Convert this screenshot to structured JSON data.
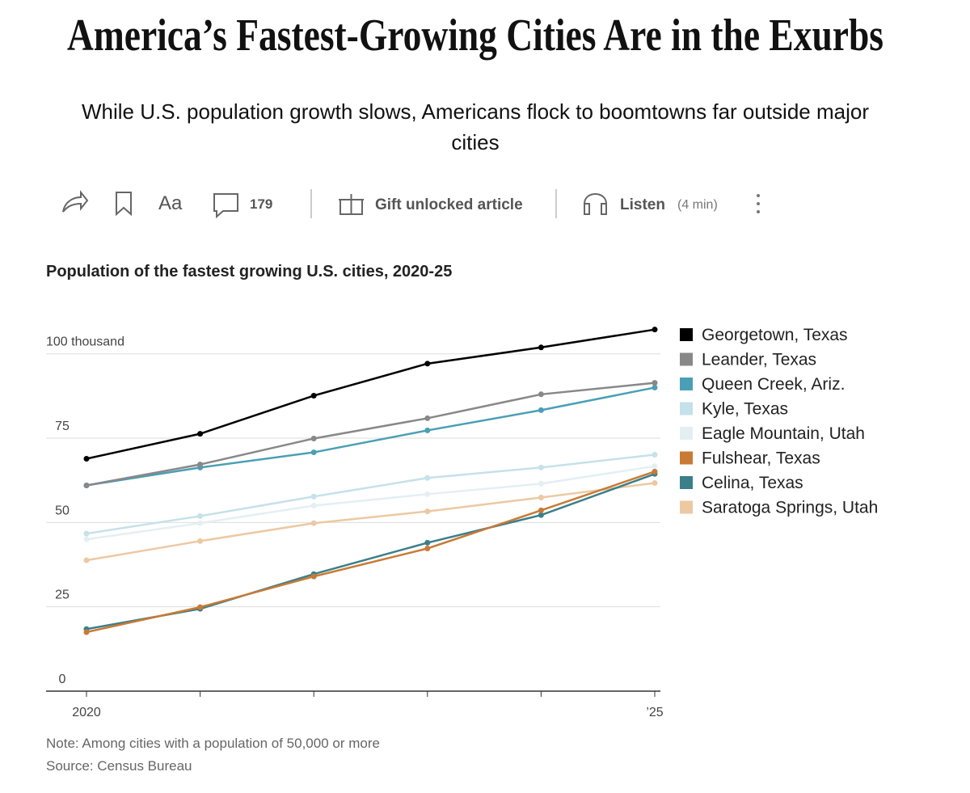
{
  "header": {
    "title": "America’s Fastest-Growing Cities Are in the Exurbs",
    "subtitle": "While U.S. population growth slows, Americans flock to boomtowns far outside major cities"
  },
  "toolbar": {
    "font_button": "Aa",
    "comments": "179",
    "gift": "Gift unlocked article",
    "listen": "Listen",
    "listen_duration": "(4 min)"
  },
  "chart_data": {
    "type": "line",
    "title": "Population of the fastest growing U.S. cities, 2020-25",
    "categories": [
      "2020",
      null,
      null,
      null,
      null,
      "’25"
    ],
    "ylim": [
      0,
      110
    ],
    "yticks": [
      0,
      25,
      50,
      75,
      {
        "value": 100,
        "label": "100 thousand"
      }
    ],
    "grid": true,
    "legend": "right",
    "series": [
      {
        "name": "Georgetown, Texas",
        "color": "#000000",
        "values": [
          68.9,
          76.3,
          87.6,
          97.1,
          101.9,
          107.2
        ]
      },
      {
        "name": "Leander, Texas",
        "color": "#888888",
        "values": [
          61,
          67.2,
          74.9,
          80.9,
          88,
          91.4
        ]
      },
      {
        "name": "Queen Creek, Ariz.",
        "color": "#4a9fb5",
        "values": [
          61,
          66.3,
          70.8,
          77.3,
          83.3,
          90
        ]
      },
      {
        "name": "Kyle, Texas",
        "color": "#c5e1ea",
        "values": [
          46.7,
          51.9,
          57.7,
          63.2,
          66.3,
          70.1
        ]
      },
      {
        "name": "Eagle Mountain, Utah",
        "color": "#e4eff3",
        "values": [
          45,
          49.8,
          55,
          58.4,
          61.5,
          66.7
        ]
      },
      {
        "name": "Fulshear, Texas",
        "color": "#c97a35",
        "values": [
          17.5,
          24.9,
          34,
          42.3,
          53.6,
          65.1
        ]
      },
      {
        "name": "Celina, Texas",
        "color": "#3a7f8a",
        "values": [
          18.4,
          24.4,
          34.7,
          44,
          52.2,
          64.4
        ]
      },
      {
        "name": "Saratoga Springs, Utah",
        "color": "#ecc9a2",
        "values": [
          38.8,
          44.5,
          49.8,
          53.3,
          57.4,
          61.7
        ]
      }
    ],
    "note": "Note: Among cities with a population of 50,000 or more",
    "source": "Source: Census Bureau"
  }
}
